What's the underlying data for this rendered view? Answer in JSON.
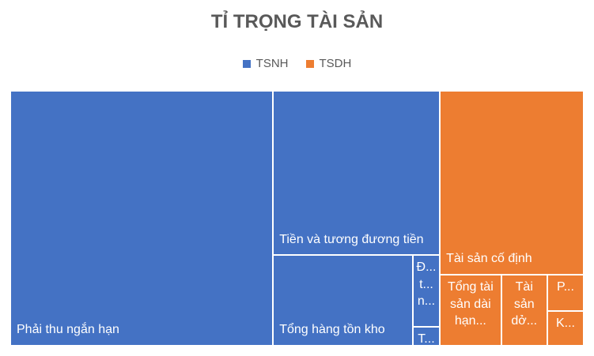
{
  "chart_data": {
    "type": "treemap",
    "title": "TỈ TRỌNG TÀI SẢN",
    "series": [
      {
        "name": "TSNH",
        "color": "#4472c4",
        "categories": [
          "Phải thu ngắn hạn",
          "Tiền và tương đương tiền",
          "Tổng hàng tồn kho",
          "Đ... t... n...",
          "T..."
        ],
        "values": [
          1063,
          435,
          201,
          31,
          8
        ]
      },
      {
        "name": "TSDH",
        "color": "#ed7d31",
        "categories": [
          "Tài sản cố định",
          "Tổng tài sản dài hạn...",
          "Tài sản dở...",
          "P...",
          "K..."
        ],
        "values": [
          420,
          69,
          52,
          21,
          20
        ]
      }
    ]
  }
}
